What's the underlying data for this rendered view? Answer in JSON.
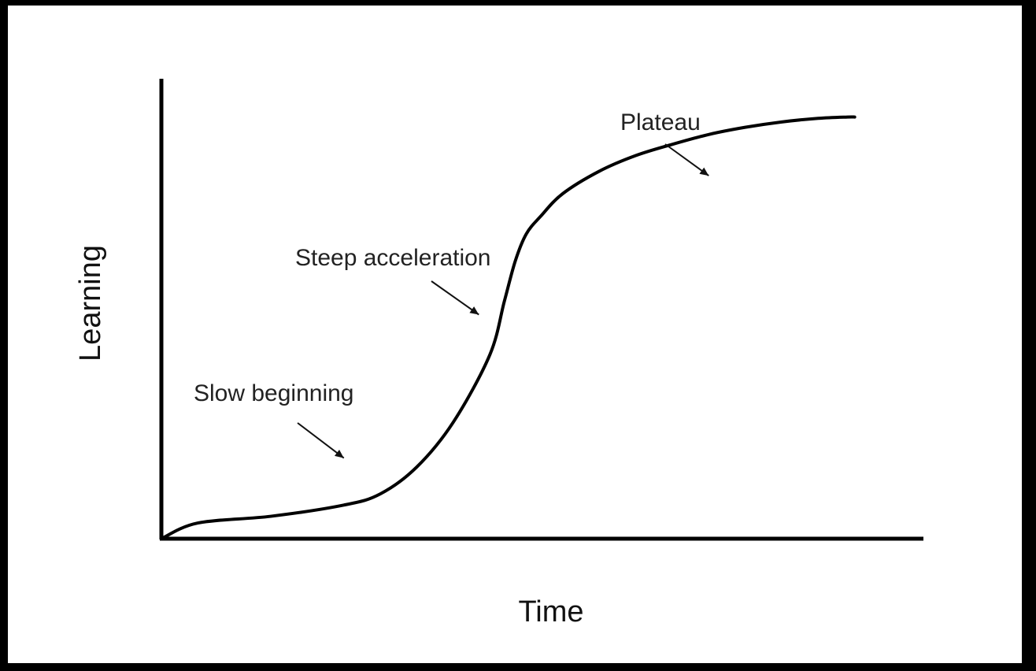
{
  "chart_data": {
    "type": "line",
    "xlabel": "Time",
    "ylabel": "Learning",
    "xlim": [
      0,
      100
    ],
    "ylim": [
      0,
      100
    ],
    "grid": false,
    "legend": "none",
    "colors": {
      "frame": "#000000",
      "background": "#ffffff",
      "line": "#000000",
      "text": "#222222"
    },
    "series": [
      {
        "x": [
          0,
          5,
          15,
          25,
          30,
          35,
          40,
          45,
          47,
          48.5,
          50,
          52,
          55,
          60,
          65,
          70,
          75,
          80,
          85,
          90,
          94,
          95
        ],
        "values": [
          0,
          3.5,
          5,
          7.5,
          10,
          16,
          26,
          41,
          53,
          62,
          68,
          72,
          77,
          82,
          85.5,
          88,
          90.2,
          91.8,
          93,
          93.8,
          94.1,
          94.1
        ]
      }
    ],
    "annotations": [
      {
        "text": "Slow beginning",
        "target_x": 25,
        "target_y": 18
      },
      {
        "text": "Steep acceleration",
        "target_x": 43.5,
        "target_y": 50
      },
      {
        "text": "Plateau",
        "target_x": 75,
        "target_y": 81
      }
    ]
  }
}
